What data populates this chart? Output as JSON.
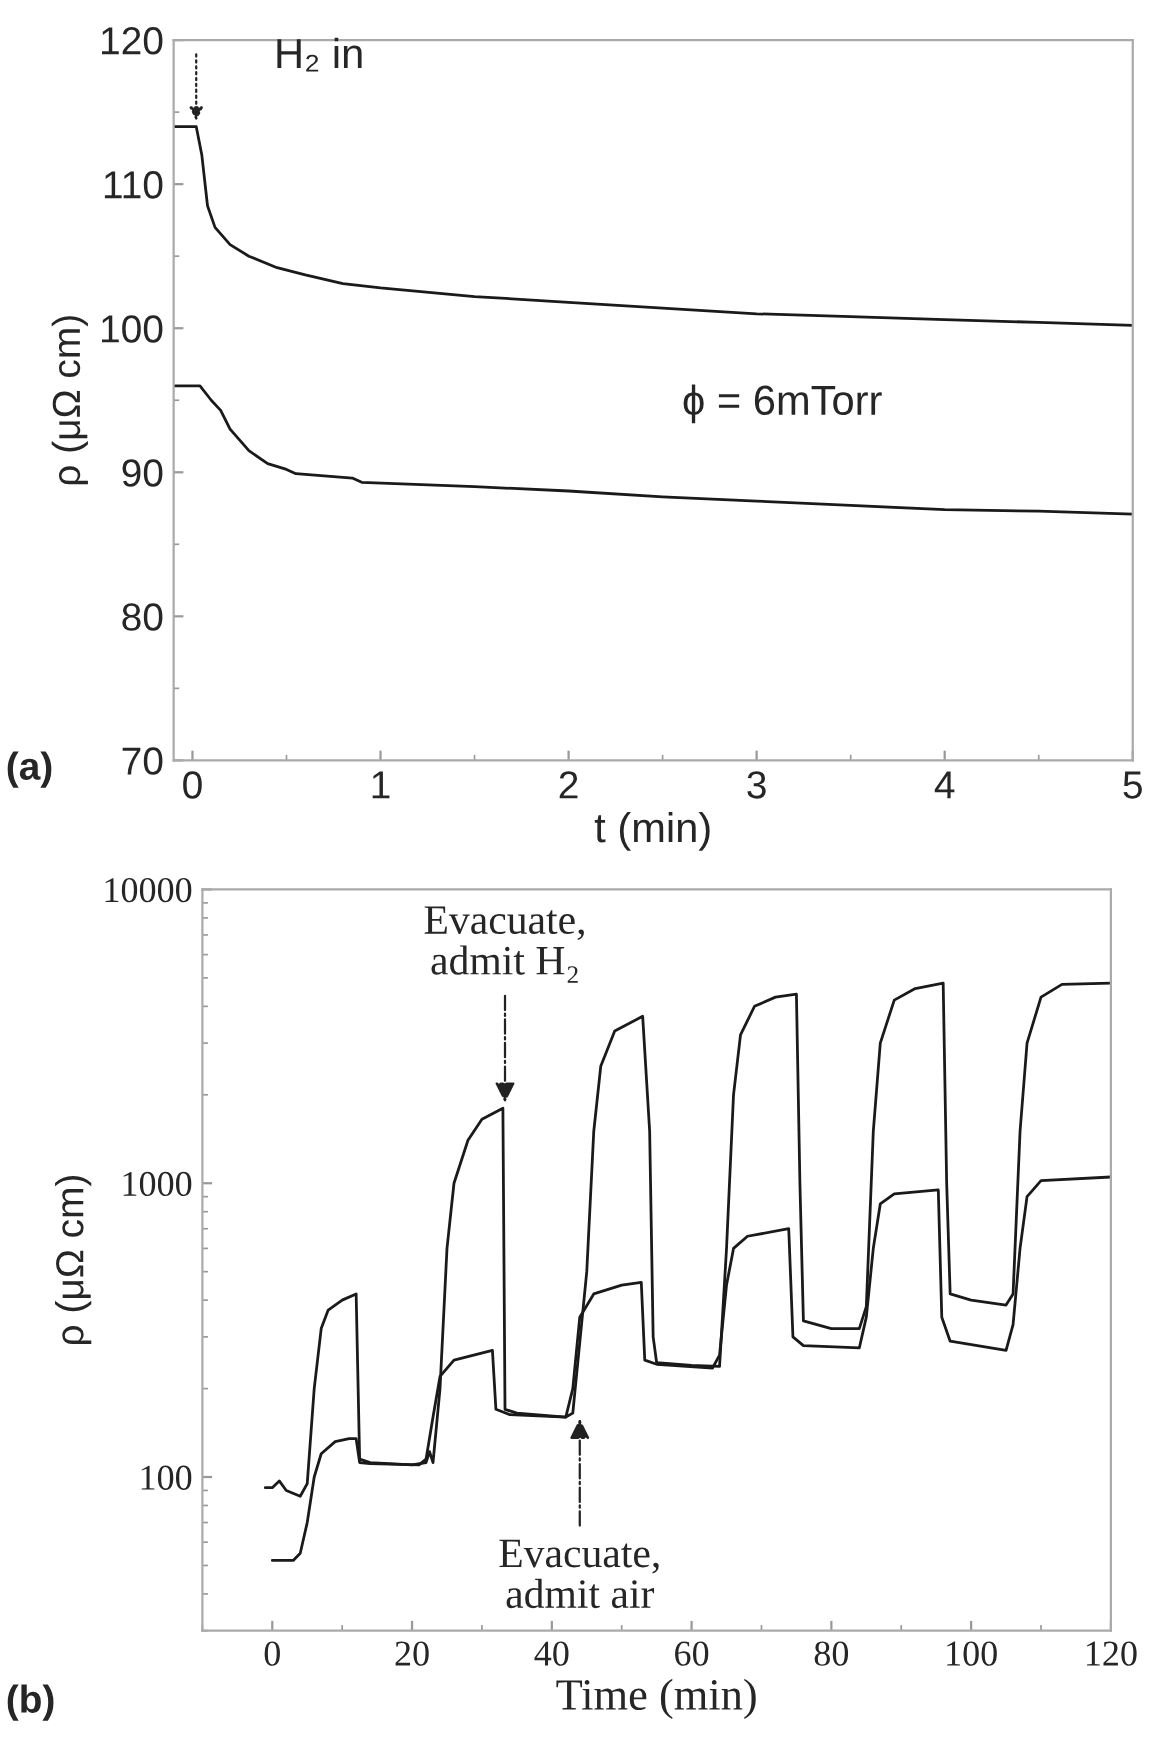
{
  "chart_data": [
    {
      "type": "line",
      "xlabel": "t (min)",
      "ylabel": "ρ (μΩ cm)",
      "xlim": [
        -0.1,
        5
      ],
      "ylim": [
        70,
        120
      ],
      "xticks": [
        0,
        1,
        2,
        3,
        4,
        5
      ],
      "yticks": [
        70,
        80,
        90,
        100,
        110,
        120
      ],
      "marker": "none",
      "line_style": "solid",
      "grid": false,
      "legend": false,
      "annotations": [
        {
          "text": "H₂ in",
          "x": 0.02,
          "y": 114
        },
        "ϕ = 6mTorr",
        "(a)"
      ],
      "series": [
        {
          "color": "#1a1a1a",
          "x": [
            -0.1,
            0.02,
            0.05,
            0.08,
            0.12,
            0.2,
            0.3,
            0.45,
            0.6,
            0.8,
            1.0,
            1.5,
            2,
            2.5,
            3,
            3.5,
            4,
            4.5,
            5
          ],
          "values": [
            114,
            114,
            112,
            108.5,
            107,
            105.8,
            105,
            104.2,
            103.7,
            103.1,
            102.8,
            102.2,
            101.8,
            101.4,
            101.0,
            100.8,
            100.6,
            100.4,
            100.2
          ]
        },
        {
          "color": "#1a1a1a",
          "x": [
            -0.1,
            0.04,
            0.1,
            0.15,
            0.2,
            0.3,
            0.4,
            0.5,
            0.55,
            0.85,
            0.9,
            1.5,
            2,
            2.5,
            3,
            3.5,
            4,
            4.5,
            5
          ],
          "values": [
            96,
            96,
            95,
            94.3,
            93,
            91.5,
            90.6,
            90.2,
            89.9,
            89.6,
            89.3,
            89.0,
            88.7,
            88.3,
            88.0,
            87.7,
            87.4,
            87.3,
            87.1
          ]
        }
      ]
    },
    {
      "type": "line",
      "xlabel": "Time (min)",
      "ylabel": "ρ (μΩ cm)",
      "log": "y",
      "xlim": [
        -10,
        120
      ],
      "ylim": [
        30,
        10000
      ],
      "xticks": [
        0,
        20,
        40,
        60,
        80,
        100,
        120
      ],
      "yticks": [
        100,
        1000,
        10000
      ],
      "marker": "none",
      "line_style": "solid",
      "grid": false,
      "legend": false,
      "annotations": [
        {
          "text": "Evacuate,\nadmit H₂",
          "x": 33.3,
          "y": 1800
        },
        {
          "text": "Evacuate,\nadmit air",
          "x": 44,
          "y": 165
        },
        "(b)"
      ],
      "series": [
        {
          "color": "#1a1a1a",
          "x": [
            -1,
            0,
            1,
            2,
            4,
            5,
            6,
            7,
            8,
            10,
            12,
            12.5,
            14,
            20,
            22,
            22.5,
            23,
            24,
            25,
            26,
            28,
            30,
            33,
            33.3,
            35,
            42,
            43,
            45,
            46,
            47,
            49,
            53,
            54,
            54.5,
            55,
            60,
            64,
            65,
            66,
            67,
            69,
            72,
            75,
            75.5,
            76,
            80,
            84,
            85,
            86,
            87,
            89,
            92,
            96,
            96.5,
            97,
            100,
            105,
            106,
            107,
            108,
            110,
            113,
            120
          ],
          "values": [
            92,
            92,
            97,
            90,
            86,
            95,
            200,
            320,
            370,
            400,
            420,
            115,
            112,
            110,
            112,
            122,
            112,
            200,
            600,
            1000,
            1400,
            1650,
            1800,
            170,
            165,
            160,
            165,
            500,
            1500,
            2500,
            3300,
            3700,
            1500,
            300,
            245,
            240,
            238,
            600,
            2000,
            3200,
            4000,
            4300,
            4400,
            1000,
            340,
            320,
            320,
            380,
            1500,
            3000,
            4200,
            4600,
            4800,
            1000,
            420,
            400,
            385,
            420,
            1500,
            3000,
            4300,
            4750,
            4800
          ]
        },
        {
          "color": "#1a1a1a",
          "x": [
            0,
            3,
            4,
            5,
            6,
            7,
            9,
            11,
            12,
            12.5,
            14,
            21,
            22,
            23,
            24,
            26,
            31.5,
            32,
            34,
            42,
            43,
            44,
            46,
            50,
            52.8,
            53.3,
            55,
            63,
            64,
            65,
            66,
            68,
            73.9,
            74.5,
            76,
            84,
            85,
            86,
            87,
            89,
            95.3,
            95.8,
            97,
            105,
            106,
            107,
            108,
            110,
            120
          ],
          "values": [
            52,
            52,
            55,
            70,
            100,
            120,
            132,
            135,
            135,
            112,
            111,
            110,
            115,
            160,
            220,
            250,
            270,
            170,
            163,
            160,
            200,
            350,
            420,
            450,
            460,
            250,
            242,
            235,
            260,
            450,
            600,
            660,
            700,
            300,
            280,
            275,
            350,
            600,
            850,
            920,
            950,
            350,
            290,
            270,
            330,
            600,
            900,
            1020,
            1050
          ]
        }
      ]
    }
  ]
}
